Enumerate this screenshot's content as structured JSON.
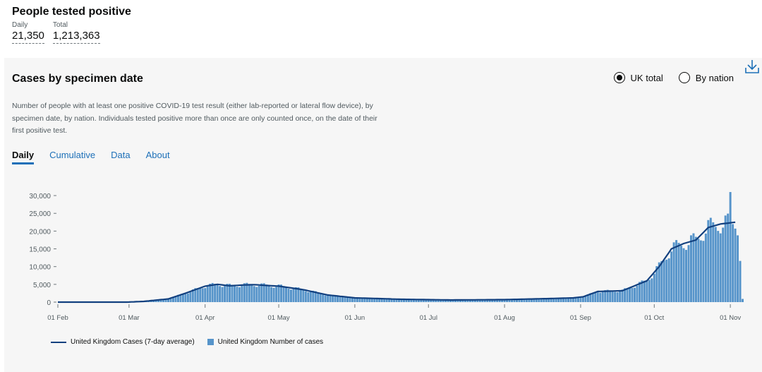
{
  "headline": {
    "title": "People tested positive",
    "metrics": [
      {
        "label": "Daily",
        "value": "21,350"
      },
      {
        "label": "Total",
        "value": "1,213,363"
      }
    ]
  },
  "card": {
    "title": "Cases by specimen date",
    "radios": [
      {
        "label": "UK total",
        "selected": true
      },
      {
        "label": "By nation",
        "selected": false
      }
    ],
    "description": "Number of people with at least one positive COVID-19 test result (either lab-reported or lateral flow device), by specimen date, by nation. Individuals tested positive more than once are only counted once, on the date of their first positive test.",
    "tabs": [
      "Daily",
      "Cumulative",
      "Data",
      "About"
    ],
    "download_icon": "download-icon"
  },
  "colors": {
    "bar": "#5694ca",
    "line": "#12407f",
    "link": "#1d70b8"
  },
  "chart_data": {
    "type": "bar",
    "title": "Cases by specimen date",
    "xlabel": "",
    "ylabel": "",
    "ylim": [
      0,
      32000
    ],
    "yticks": [
      0,
      5000,
      10000,
      15000,
      20000,
      25000,
      30000
    ],
    "ytick_labels": [
      "0",
      "5,000",
      "10,000",
      "15,000",
      "20,000",
      "25,000",
      "30,000"
    ],
    "xtick_labels": [
      "01 Feb",
      "01 Mar",
      "01 Apr",
      "01 May",
      "01 Jun",
      "01 Jul",
      "01 Aug",
      "01 Sep",
      "01 Oct",
      "01 Nov"
    ],
    "xtick_day_index": [
      0,
      29,
      60,
      90,
      121,
      151,
      182,
      213,
      243,
      274
    ],
    "start_date": "2020-02-01",
    "series": [
      {
        "name": "United Kingdom Cases (7-day average)",
        "type": "line",
        "day_index": [
          0,
          28,
          35,
          45,
          52,
          60,
          65,
          70,
          75,
          80,
          85,
          90,
          100,
          110,
          121,
          140,
          160,
          182,
          200,
          210,
          214,
          220,
          230,
          240,
          245,
          250,
          255,
          260,
          265,
          270,
          276,
          279
        ],
        "values": [
          0,
          0,
          200,
          900,
          2500,
          4500,
          5000,
          4600,
          4800,
          4900,
          4700,
          4500,
          3500,
          2000,
          1200,
          800,
          600,
          700,
          1000,
          1200,
          1500,
          3000,
          3200,
          6000,
          10000,
          15000,
          16500,
          17500,
          21000,
          22000,
          22500,
          22500
        ]
      },
      {
        "name": "United Kingdom Number of cases",
        "type": "bar",
        "day_index": [
          0,
          28,
          35,
          45,
          52,
          60,
          65,
          70,
          75,
          80,
          85,
          90,
          100,
          110,
          121,
          140,
          160,
          182,
          200,
          210,
          214,
          220,
          230,
          240,
          245,
          250,
          255,
          260,
          265,
          270,
          276,
          279
        ],
        "values": [
          0,
          0,
          200,
          900,
          2500,
          4500,
          5000,
          4600,
          4800,
          4900,
          4700,
          4500,
          3500,
          2000,
          1200,
          800,
          600,
          700,
          1000,
          1200,
          1500,
          3000,
          3200,
          6000,
          10000,
          15000,
          16500,
          17500,
          21000,
          22000,
          22500,
          22500
        ],
        "peak_day_index": 274,
        "peak_value": 31000,
        "last_values": [
          18800,
          11600,
          900
        ]
      }
    ],
    "legend": [
      "United Kingdom Cases (7-day average)",
      "United Kingdom Number of cases"
    ]
  }
}
